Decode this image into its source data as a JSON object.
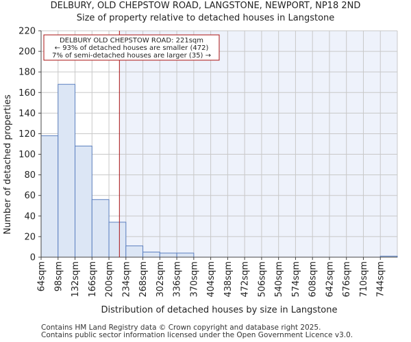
{
  "chart_data": {
    "type": "bar",
    "title": "DELBURY, OLD CHEPSTOW ROAD, LANGSTONE, NEWPORT, NP18 2ND",
    "subtitle": "Size of property relative to detached houses in Langstone",
    "xlabel": "Distribution of detached houses by size in Langstone",
    "ylabel": "Number of detached properties",
    "categories": [
      "64sqm",
      "98sqm",
      "132sqm",
      "166sqm",
      "200sqm",
      "234sqm",
      "268sqm",
      "302sqm",
      "336sqm",
      "370sqm",
      "404sqm",
      "438sqm",
      "472sqm",
      "506sqm",
      "540sqm",
      "574sqm",
      "608sqm",
      "642sqm",
      "676sqm",
      "710sqm",
      "744sqm"
    ],
    "bin_edges": [
      64,
      98,
      132,
      166,
      200,
      234,
      268,
      302,
      336,
      370,
      404,
      438,
      472,
      506,
      540,
      574,
      608,
      642,
      676,
      710,
      744,
      778
    ],
    "values": [
      118,
      168,
      108,
      56,
      34,
      11,
      5,
      4,
      4,
      0,
      0,
      0,
      0,
      0,
      0,
      0,
      0,
      0,
      0,
      0,
      1
    ],
    "ylim": [
      0,
      220
    ],
    "yticks": [
      0,
      20,
      40,
      60,
      80,
      100,
      120,
      140,
      160,
      180,
      200,
      220
    ],
    "marker_value": 221,
    "annotation": {
      "line1": "DELBURY OLD CHEPSTOW ROAD: 221sqm",
      "line2": "← 93% of detached houses are smaller (472)",
      "line3": "7% of semi-detached houses are larger (35) →"
    },
    "colors": {
      "bar_fill": "#dce6f5",
      "bar_stroke": "#5b7fbf",
      "marker": "#aa1111",
      "shaded_bg": "#eef2fb"
    }
  },
  "footer": {
    "line1": "Contains HM Land Registry data © Crown copyright and database right 2025.",
    "line2": "Contains public sector information licensed under the Open Government Licence v3.0."
  }
}
